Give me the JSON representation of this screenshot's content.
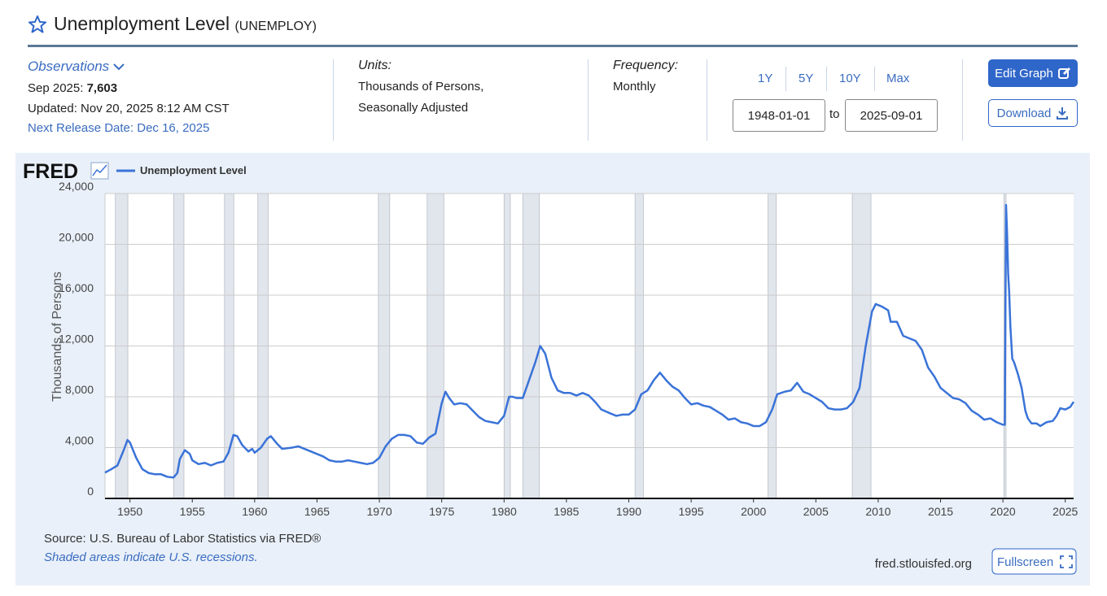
{
  "header": {
    "title": "Unemployment Level",
    "series_id": "(UNEMPLOY)"
  },
  "info": {
    "observations": {
      "label": "Observations",
      "date": "Sep 2025:",
      "value": "7,603",
      "updated": "Updated: Nov 20, 2025 8:12 AM CST",
      "next_release": "Next Release Date: Dec 16, 2025"
    },
    "units": {
      "label": "Units:",
      "lines": [
        "Thousands of Persons,",
        "Seasonally Adjusted"
      ]
    },
    "frequency": {
      "label": "Frequency:",
      "value": "Monthly"
    },
    "ranges": [
      "1Y",
      "5Y",
      "10Y",
      "Max"
    ],
    "date_range": {
      "start": "1948-01-01",
      "to": "to",
      "end": "2025-09-01"
    },
    "buttons": {
      "edit": "Edit Graph",
      "download": "Download"
    }
  },
  "panel": {
    "logo": "FRED",
    "source": "Source: U.S. Bureau of Labor Statistics via FRED®",
    "note": "Shaded areas indicate U.S. recessions.",
    "site": "fred.stlouisfed.org",
    "fullscreen": "Fullscreen"
  },
  "chart_data": {
    "type": "line",
    "y_label": "Thousands of Persons",
    "grid": true,
    "xlim": [
      1948,
      2025.67
    ],
    "xticks": [
      1950,
      1955,
      1960,
      1965,
      1970,
      1975,
      1980,
      1985,
      1990,
      1995,
      2000,
      2005,
      2010,
      2015,
      2020,
      2025
    ],
    "ylim": [
      0,
      24000
    ],
    "yticks": [
      0,
      {
        "value": 4000,
        "label": "4,000"
      },
      {
        "value": 8000,
        "label": "8,000"
      },
      {
        "value": 12000,
        "label": "12,000"
      },
      {
        "value": 16000,
        "label": "16,000"
      },
      {
        "value": 20000,
        "label": "20,000"
      },
      {
        "value": 24000,
        "label": "24,000"
      }
    ],
    "recessions": [
      [
        1948.83,
        1949.83
      ],
      [
        1953.5,
        1954.33
      ],
      [
        1957.58,
        1958.33
      ],
      [
        1960.25,
        1961.08
      ],
      [
        1969.92,
        1970.83
      ],
      [
        1973.83,
        1975.17
      ],
      [
        1980.0,
        1980.5
      ],
      [
        1981.5,
        1982.83
      ],
      [
        1990.5,
        1991.17
      ],
      [
        2001.17,
        2001.83
      ],
      [
        2007.92,
        2009.42
      ],
      [
        2020.08,
        2020.25
      ]
    ],
    "x": [
      1948.0,
      1948.5,
      1949.0,
      1949.5,
      1949.8,
      1950.0,
      1950.5,
      1951.0,
      1951.5,
      1952.0,
      1952.5,
      1953.0,
      1953.5,
      1953.8,
      1954.0,
      1954.4,
      1954.8,
      1955.0,
      1955.5,
      1956.0,
      1956.5,
      1957.0,
      1957.5,
      1957.9,
      1958.3,
      1958.6,
      1959.0,
      1959.5,
      1959.8,
      1960.0,
      1960.5,
      1961.0,
      1961.3,
      1961.8,
      1962.2,
      1963.0,
      1963.5,
      1964.0,
      1964.5,
      1965.0,
      1965.5,
      1966.0,
      1966.5,
      1967.0,
      1967.5,
      1968.0,
      1968.5,
      1969.0,
      1969.5,
      1970.0,
      1970.5,
      1971.0,
      1971.5,
      1972.0,
      1972.5,
      1973.0,
      1973.5,
      1974.0,
      1974.5,
      1975.0,
      1975.3,
      1975.6,
      1976.0,
      1976.5,
      1977.0,
      1977.5,
      1978.0,
      1978.5,
      1979.0,
      1979.5,
      1980.0,
      1980.4,
      1980.7,
      1981.0,
      1981.5,
      1982.0,
      1982.5,
      1982.9,
      1983.3,
      1983.8,
      1984.3,
      1984.8,
      1985.3,
      1985.8,
      1986.3,
      1986.8,
      1987.3,
      1987.8,
      1988.5,
      1989.0,
      1989.5,
      1990.0,
      1990.5,
      1991.0,
      1991.5,
      1992.0,
      1992.5,
      1993.0,
      1993.5,
      1994.0,
      1994.5,
      1995.0,
      1995.5,
      1996.0,
      1996.5,
      1997.0,
      1997.5,
      1998.0,
      1998.5,
      1999.0,
      1999.5,
      2000.0,
      2000.5,
      2001.0,
      2001.5,
      2001.9,
      2002.5,
      2003.0,
      2003.5,
      2004.0,
      2004.5,
      2005.0,
      2005.5,
      2006.0,
      2006.5,
      2007.0,
      2007.5,
      2008.0,
      2008.5,
      2009.0,
      2009.5,
      2009.8,
      2010.3,
      2010.8,
      2011.0,
      2011.5,
      2012.0,
      2012.5,
      2013.0,
      2013.5,
      2014.0,
      2014.5,
      2015.0,
      2015.5,
      2016.0,
      2016.5,
      2017.0,
      2017.5,
      2018.0,
      2018.5,
      2019.0,
      2019.5,
      2020.0,
      2020.15,
      2020.25,
      2020.33,
      2020.42,
      2020.5,
      2020.6,
      2020.75,
      2020.9,
      2021.2,
      2021.5,
      2021.8,
      2022.0,
      2022.3,
      2022.7,
      2023.0,
      2023.5,
      2024.0,
      2024.3,
      2024.6,
      2025.0,
      2025.4,
      2025.67
    ],
    "series": [
      {
        "name": "Unemployment Level",
        "color": "#3a73d8",
        "values": [
          2034,
          2300,
          2600,
          3800,
          4600,
          4400,
          3200,
          2300,
          2000,
          1900,
          1900,
          1700,
          1650,
          2000,
          3100,
          3800,
          3500,
          3000,
          2700,
          2800,
          2600,
          2800,
          2900,
          3600,
          5000,
          4900,
          4200,
          3700,
          3900,
          3600,
          4000,
          4700,
          4900,
          4300,
          3900,
          4000,
          4100,
          3900,
          3700,
          3500,
          3300,
          3000,
          2900,
          2900,
          3000,
          2900,
          2800,
          2700,
          2800,
          3200,
          4100,
          4700,
          5000,
          5000,
          4900,
          4400,
          4300,
          4800,
          5100,
          7500,
          8400,
          7900,
          7400,
          7500,
          7400,
          6900,
          6400,
          6100,
          6000,
          5900,
          6500,
          8000,
          8000,
          7900,
          7900,
          9300,
          10700,
          12000,
          11400,
          9500,
          8500,
          8300,
          8300,
          8100,
          8300,
          8100,
          7600,
          7000,
          6700,
          6500,
          6600,
          6600,
          7000,
          8200,
          8500,
          9300,
          9900,
          9300,
          8800,
          8500,
          7900,
          7400,
          7500,
          7300,
          7200,
          6900,
          6600,
          6200,
          6300,
          6000,
          5900,
          5700,
          5700,
          6000,
          7000,
          8200,
          8400,
          8500,
          9100,
          8400,
          8200,
          7900,
          7600,
          7100,
          7000,
          7000,
          7100,
          7600,
          8700,
          12000,
          14700,
          15300,
          15100,
          14800,
          13900,
          13900,
          12800,
          12600,
          12400,
          11700,
          10300,
          9600,
          8700,
          8300,
          7900,
          7800,
          7500,
          6900,
          6600,
          6200,
          6300,
          6000,
          5800,
          5800,
          23100,
          21000,
          17700,
          16300,
          13500,
          11000,
          10700,
          9800,
          8700,
          6900,
          6300,
          5900,
          5900,
          5700,
          6000,
          6100,
          6500,
          7100,
          7000,
          7200,
          7603
        ]
      }
    ]
  }
}
